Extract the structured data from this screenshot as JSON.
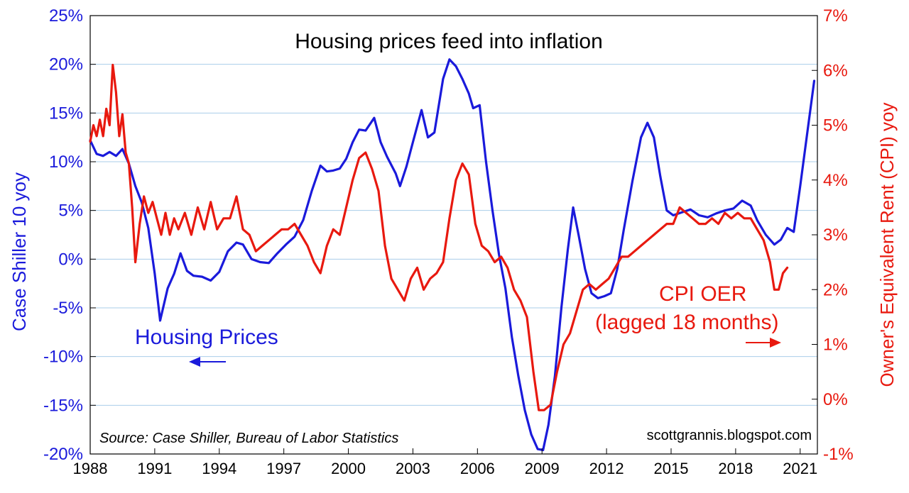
{
  "chart_data": {
    "type": "line",
    "title": "Housing prices feed into inflation",
    "x_ticks": [
      "1988",
      "1991",
      "1994",
      "1997",
      "2000",
      "2003",
      "2006",
      "2009",
      "2012",
      "2015",
      "2018",
      "2021"
    ],
    "xlim": [
      1988,
      2021.8
    ],
    "y_left": {
      "label": "Case Shiller 10 yoy",
      "ticks": [
        "25%",
        "20%",
        "15%",
        "10%",
        "5%",
        "0%",
        "-5%",
        "-10%",
        "-15%",
        "-20%"
      ],
      "range": [
        -20,
        25
      ],
      "color": "#1a1adb"
    },
    "y_right": {
      "label": "Owner's Equivalent Rent (CPI) yoy",
      "ticks": [
        "7%",
        "6%",
        "5%",
        "4%",
        "3%",
        "2%",
        "1%",
        "0%",
        "-1%"
      ],
      "range": [
        -1,
        7
      ],
      "color": "#e8190f"
    },
    "grid": true,
    "series": [
      {
        "name": "Housing Prices",
        "axis": "left",
        "color": "#1a1adb",
        "points": [
          [
            1988.0,
            12.2
          ],
          [
            1988.3,
            10.8
          ],
          [
            1988.6,
            10.6
          ],
          [
            1988.9,
            11.0
          ],
          [
            1989.2,
            10.6
          ],
          [
            1989.5,
            11.3
          ],
          [
            1989.8,
            9.8
          ],
          [
            1990.1,
            7.5
          ],
          [
            1990.4,
            5.8
          ],
          [
            1990.7,
            3.2
          ],
          [
            1991.0,
            -1.5
          ],
          [
            1991.25,
            -6.3
          ],
          [
            1991.6,
            -3.0
          ],
          [
            1991.9,
            -1.5
          ],
          [
            1992.2,
            0.6
          ],
          [
            1992.5,
            -1.2
          ],
          [
            1992.8,
            -1.7
          ],
          [
            1993.2,
            -1.8
          ],
          [
            1993.6,
            -2.2
          ],
          [
            1994.0,
            -1.3
          ],
          [
            1994.4,
            0.8
          ],
          [
            1994.8,
            1.7
          ],
          [
            1995.1,
            1.5
          ],
          [
            1995.5,
            0.0
          ],
          [
            1995.9,
            -0.3
          ],
          [
            1996.3,
            -0.4
          ],
          [
            1996.7,
            0.6
          ],
          [
            1997.1,
            1.5
          ],
          [
            1997.5,
            2.3
          ],
          [
            1997.9,
            4.0
          ],
          [
            1998.3,
            7.0
          ],
          [
            1998.7,
            9.6
          ],
          [
            1999.0,
            9.0
          ],
          [
            1999.3,
            9.1
          ],
          [
            1999.6,
            9.3
          ],
          [
            1999.9,
            10.3
          ],
          [
            2000.2,
            12.0
          ],
          [
            2000.5,
            13.3
          ],
          [
            2000.8,
            13.2
          ],
          [
            2001.2,
            14.5
          ],
          [
            2001.5,
            12.0
          ],
          [
            2001.8,
            10.5
          ],
          [
            2002.2,
            8.8
          ],
          [
            2002.4,
            7.5
          ],
          [
            2002.7,
            9.5
          ],
          [
            2003.0,
            12.0
          ],
          [
            2003.4,
            15.3
          ],
          [
            2003.7,
            12.5
          ],
          [
            2004.0,
            13.0
          ],
          [
            2004.4,
            18.5
          ],
          [
            2004.7,
            20.5
          ],
          [
            2005.0,
            19.8
          ],
          [
            2005.3,
            18.5
          ],
          [
            2005.6,
            17.0
          ],
          [
            2005.8,
            15.5
          ],
          [
            2006.1,
            15.8
          ],
          [
            2006.4,
            10.0
          ],
          [
            2006.7,
            5.0
          ],
          [
            2007.0,
            0.5
          ],
          [
            2007.3,
            -3.0
          ],
          [
            2007.6,
            -8.0
          ],
          [
            2007.9,
            -12.0
          ],
          [
            2008.2,
            -15.5
          ],
          [
            2008.5,
            -18.0
          ],
          [
            2008.8,
            -19.5
          ],
          [
            2009.05,
            -19.6
          ],
          [
            2009.3,
            -17.0
          ],
          [
            2009.6,
            -12.0
          ],
          [
            2009.9,
            -5.0
          ],
          [
            2010.2,
            1.0
          ],
          [
            2010.45,
            5.3
          ],
          [
            2010.7,
            2.5
          ],
          [
            2011.0,
            -1.0
          ],
          [
            2011.3,
            -3.5
          ],
          [
            2011.6,
            -4.0
          ],
          [
            2011.9,
            -3.8
          ],
          [
            2012.2,
            -3.5
          ],
          [
            2012.5,
            -1.0
          ],
          [
            2012.8,
            3.0
          ],
          [
            2013.2,
            8.0
          ],
          [
            2013.6,
            12.5
          ],
          [
            2013.9,
            14.0
          ],
          [
            2014.2,
            12.5
          ],
          [
            2014.5,
            8.5
          ],
          [
            2014.8,
            5.0
          ],
          [
            2015.1,
            4.5
          ],
          [
            2015.5,
            4.8
          ],
          [
            2015.9,
            5.1
          ],
          [
            2016.3,
            4.5
          ],
          [
            2016.7,
            4.3
          ],
          [
            2017.1,
            4.7
          ],
          [
            2017.5,
            5.0
          ],
          [
            2017.9,
            5.2
          ],
          [
            2018.3,
            6.0
          ],
          [
            2018.7,
            5.5
          ],
          [
            2019.0,
            4.0
          ],
          [
            2019.4,
            2.5
          ],
          [
            2019.8,
            1.5
          ],
          [
            2020.1,
            2.0
          ],
          [
            2020.4,
            3.2
          ],
          [
            2020.7,
            2.8
          ],
          [
            2021.0,
            7.5
          ],
          [
            2021.3,
            12.5
          ],
          [
            2021.65,
            18.3
          ]
        ]
      },
      {
        "name": "CPI OER (lagged 18 months)",
        "axis": "right",
        "color": "#e8190f",
        "points": [
          [
            1988.0,
            4.7
          ],
          [
            1988.15,
            5.0
          ],
          [
            1988.3,
            4.8
          ],
          [
            1988.45,
            5.1
          ],
          [
            1988.6,
            4.8
          ],
          [
            1988.75,
            5.3
          ],
          [
            1988.9,
            5.0
          ],
          [
            1989.05,
            6.1
          ],
          [
            1989.2,
            5.6
          ],
          [
            1989.35,
            4.8
          ],
          [
            1989.5,
            5.2
          ],
          [
            1989.65,
            4.5
          ],
          [
            1989.8,
            4.3
          ],
          [
            1989.95,
            3.5
          ],
          [
            1990.1,
            2.5
          ],
          [
            1990.3,
            3.2
          ],
          [
            1990.5,
            3.7
          ],
          [
            1990.7,
            3.4
          ],
          [
            1990.9,
            3.6
          ],
          [
            1991.1,
            3.3
          ],
          [
            1991.3,
            3.0
          ],
          [
            1991.5,
            3.4
          ],
          [
            1991.7,
            3.0
          ],
          [
            1991.9,
            3.3
          ],
          [
            1992.1,
            3.1
          ],
          [
            1992.4,
            3.4
          ],
          [
            1992.7,
            3.0
          ],
          [
            1993.0,
            3.5
          ],
          [
            1993.3,
            3.1
          ],
          [
            1993.6,
            3.6
          ],
          [
            1993.9,
            3.1
          ],
          [
            1994.2,
            3.3
          ],
          [
            1994.5,
            3.3
          ],
          [
            1994.8,
            3.7
          ],
          [
            1995.1,
            3.1
          ],
          [
            1995.4,
            3.0
          ],
          [
            1995.7,
            2.7
          ],
          [
            1996.0,
            2.8
          ],
          [
            1996.3,
            2.9
          ],
          [
            1996.6,
            3.0
          ],
          [
            1996.9,
            3.1
          ],
          [
            1997.2,
            3.1
          ],
          [
            1997.5,
            3.2
          ],
          [
            1997.8,
            3.0
          ],
          [
            1998.1,
            2.8
          ],
          [
            1998.4,
            2.5
          ],
          [
            1998.7,
            2.3
          ],
          [
            1999.0,
            2.8
          ],
          [
            1999.3,
            3.1
          ],
          [
            1999.6,
            3.0
          ],
          [
            1999.9,
            3.5
          ],
          [
            2000.2,
            4.0
          ],
          [
            2000.5,
            4.4
          ],
          [
            2000.8,
            4.5
          ],
          [
            2001.1,
            4.2
          ],
          [
            2001.4,
            3.8
          ],
          [
            2001.7,
            2.8
          ],
          [
            2002.0,
            2.2
          ],
          [
            2002.3,
            2.0
          ],
          [
            2002.6,
            1.8
          ],
          [
            2002.9,
            2.2
          ],
          [
            2003.2,
            2.4
          ],
          [
            2003.5,
            2.0
          ],
          [
            2003.8,
            2.2
          ],
          [
            2004.1,
            2.3
          ],
          [
            2004.4,
            2.5
          ],
          [
            2004.7,
            3.3
          ],
          [
            2005.0,
            4.0
          ],
          [
            2005.3,
            4.3
          ],
          [
            2005.6,
            4.1
          ],
          [
            2005.9,
            3.2
          ],
          [
            2006.2,
            2.8
          ],
          [
            2006.5,
            2.7
          ],
          [
            2006.8,
            2.5
          ],
          [
            2007.1,
            2.6
          ],
          [
            2007.4,
            2.4
          ],
          [
            2007.7,
            2.0
          ],
          [
            2008.0,
            1.8
          ],
          [
            2008.3,
            1.5
          ],
          [
            2008.6,
            0.5
          ],
          [
            2008.85,
            -0.2
          ],
          [
            2009.1,
            -0.2
          ],
          [
            2009.4,
            -0.1
          ],
          [
            2009.7,
            0.5
          ],
          [
            2010.0,
            1.0
          ],
          [
            2010.3,
            1.2
          ],
          [
            2010.6,
            1.6
          ],
          [
            2010.9,
            2.0
          ],
          [
            2011.2,
            2.1
          ],
          [
            2011.5,
            2.0
          ],
          [
            2011.8,
            2.1
          ],
          [
            2012.1,
            2.2
          ],
          [
            2012.4,
            2.4
          ],
          [
            2012.7,
            2.6
          ],
          [
            2013.0,
            2.6
          ],
          [
            2013.3,
            2.7
          ],
          [
            2013.6,
            2.8
          ],
          [
            2013.9,
            2.9
          ],
          [
            2014.2,
            3.0
          ],
          [
            2014.5,
            3.1
          ],
          [
            2014.8,
            3.2
          ],
          [
            2015.1,
            3.2
          ],
          [
            2015.4,
            3.5
          ],
          [
            2015.7,
            3.4
          ],
          [
            2016.0,
            3.3
          ],
          [
            2016.3,
            3.2
          ],
          [
            2016.6,
            3.2
          ],
          [
            2016.9,
            3.3
          ],
          [
            2017.2,
            3.2
          ],
          [
            2017.5,
            3.4
          ],
          [
            2017.8,
            3.3
          ],
          [
            2018.1,
            3.4
          ],
          [
            2018.4,
            3.3
          ],
          [
            2018.7,
            3.3
          ],
          [
            2019.0,
            3.1
          ],
          [
            2019.3,
            2.9
          ],
          [
            2019.6,
            2.5
          ],
          [
            2019.8,
            2.0
          ],
          [
            2020.0,
            2.0
          ],
          [
            2020.2,
            2.3
          ],
          [
            2020.4,
            2.4
          ]
        ]
      }
    ],
    "annotations": [
      {
        "text": "Housing Prices",
        "color": "#1a1adb",
        "arrow": "left"
      },
      {
        "text": "CPI OER",
        "color": "#e8190f"
      },
      {
        "text": "(lagged 18 months)",
        "color": "#e8190f",
        "arrow": "right"
      }
    ],
    "source": "Source: Case Shiller, Bureau of Labor Statistics",
    "credit": "scottgrannis.blogspot.com"
  }
}
